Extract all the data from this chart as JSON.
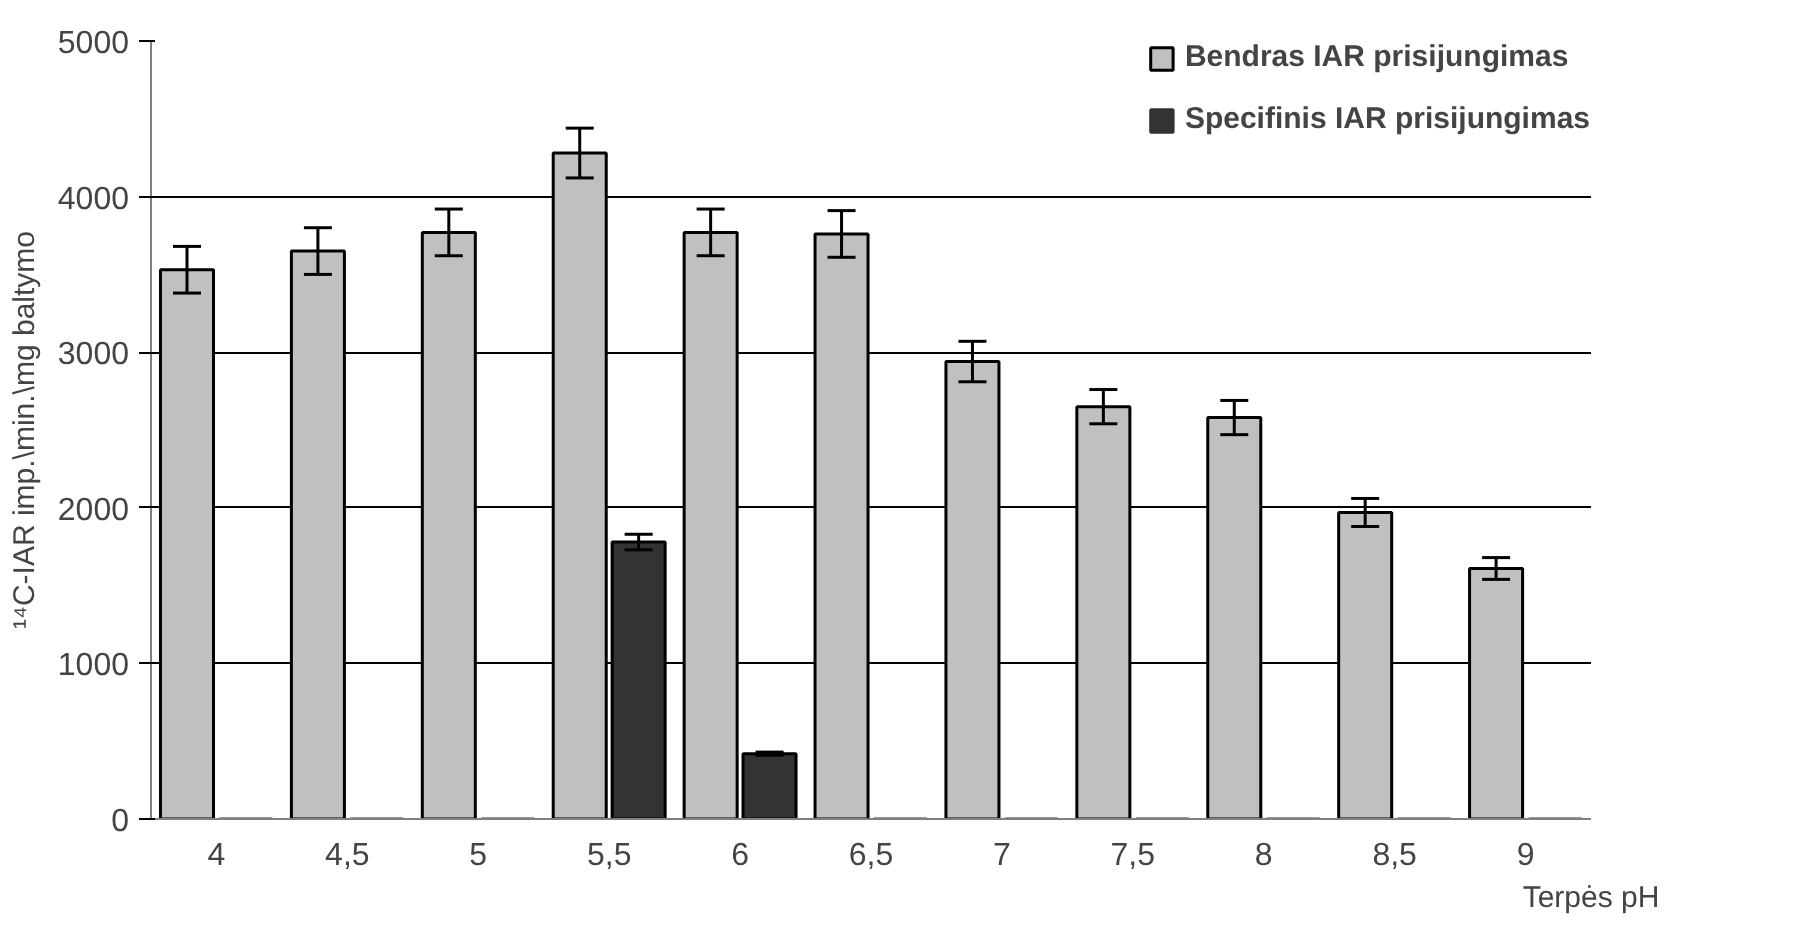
{
  "chart_data": {
    "type": "bar",
    "xlabel": "Terpės pH",
    "ylabel": "¹⁴C-IAR imp.\\min.\\mg baltymo",
    "categories": [
      "4",
      "4,5",
      "5",
      "5,5",
      "6",
      "6,5",
      "7",
      "7,5",
      "8",
      "8,5",
      "9"
    ],
    "series": [
      {
        "name": "Bendras IAR prisijungimas",
        "color": "#c0c0c0",
        "values": [
          3530,
          3650,
          3770,
          4280,
          3770,
          3760,
          2940,
          2650,
          2580,
          1970,
          1610
        ],
        "errors": [
          150,
          150,
          150,
          160,
          150,
          150,
          130,
          110,
          110,
          90,
          70
        ]
      },
      {
        "name": "Specifinis IAR prisijungimas",
        "color": "#333333",
        "values": [
          0,
          0,
          0,
          1780,
          420,
          0,
          0,
          0,
          0,
          0,
          0
        ],
        "errors": [
          null,
          null,
          null,
          50,
          10,
          null,
          null,
          null,
          null,
          null,
          null
        ]
      }
    ],
    "ylim": [
      0,
      5000
    ],
    "yticks": [
      0,
      1000,
      2000,
      3000,
      4000,
      5000
    ],
    "grid": "y",
    "legend": "top right"
  }
}
